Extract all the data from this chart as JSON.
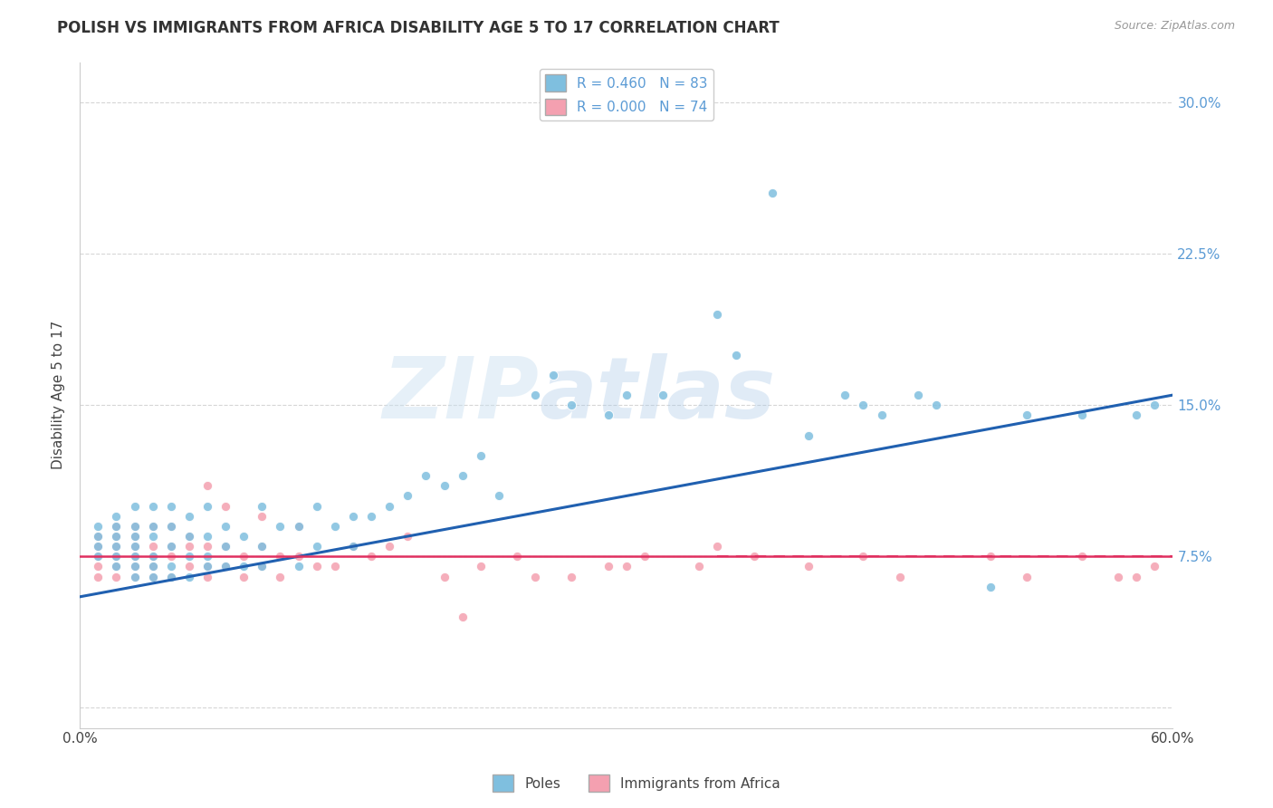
{
  "title": "POLISH VS IMMIGRANTS FROM AFRICA DISABILITY AGE 5 TO 17 CORRELATION CHART",
  "source": "Source: ZipAtlas.com",
  "ylabel": "Disability Age 5 to 17",
  "xlim": [
    0.0,
    0.6
  ],
  "ylim": [
    -0.01,
    0.32
  ],
  "poles_color": "#7fbfdf",
  "africa_color": "#f4a0b0",
  "trend_poles_color": "#2060b0",
  "trend_africa_color": "#e03060",
  "background_color": "#ffffff",
  "grid_color": "#cccccc",
  "watermark_zip": "ZIP",
  "watermark_atlas": "atlas",
  "poles_x": [
    0.01,
    0.01,
    0.01,
    0.01,
    0.02,
    0.02,
    0.02,
    0.02,
    0.02,
    0.02,
    0.03,
    0.03,
    0.03,
    0.03,
    0.03,
    0.03,
    0.03,
    0.04,
    0.04,
    0.04,
    0.04,
    0.04,
    0.04,
    0.05,
    0.05,
    0.05,
    0.05,
    0.05,
    0.06,
    0.06,
    0.06,
    0.06,
    0.07,
    0.07,
    0.07,
    0.07,
    0.08,
    0.08,
    0.08,
    0.09,
    0.09,
    0.1,
    0.1,
    0.1,
    0.11,
    0.12,
    0.12,
    0.13,
    0.13,
    0.14,
    0.15,
    0.15,
    0.16,
    0.17,
    0.18,
    0.19,
    0.2,
    0.21,
    0.22,
    0.23,
    0.25,
    0.26,
    0.27,
    0.29,
    0.3,
    0.32,
    0.35,
    0.36,
    0.38,
    0.4,
    0.42,
    0.43,
    0.44,
    0.46,
    0.47,
    0.5,
    0.52,
    0.55,
    0.58,
    0.59
  ],
  "poles_y": [
    0.075,
    0.08,
    0.085,
    0.09,
    0.07,
    0.075,
    0.08,
    0.085,
    0.09,
    0.095,
    0.065,
    0.07,
    0.075,
    0.08,
    0.085,
    0.09,
    0.1,
    0.065,
    0.07,
    0.075,
    0.085,
    0.09,
    0.1,
    0.065,
    0.07,
    0.08,
    0.09,
    0.1,
    0.065,
    0.075,
    0.085,
    0.095,
    0.07,
    0.075,
    0.085,
    0.1,
    0.07,
    0.08,
    0.09,
    0.07,
    0.085,
    0.07,
    0.08,
    0.1,
    0.09,
    0.07,
    0.09,
    0.08,
    0.1,
    0.09,
    0.08,
    0.095,
    0.095,
    0.1,
    0.105,
    0.115,
    0.11,
    0.115,
    0.125,
    0.105,
    0.155,
    0.165,
    0.15,
    0.145,
    0.155,
    0.155,
    0.195,
    0.175,
    0.255,
    0.135,
    0.155,
    0.15,
    0.145,
    0.155,
    0.15,
    0.06,
    0.145,
    0.145,
    0.145,
    0.15
  ],
  "africa_x": [
    0.01,
    0.01,
    0.01,
    0.01,
    0.01,
    0.02,
    0.02,
    0.02,
    0.02,
    0.02,
    0.02,
    0.03,
    0.03,
    0.03,
    0.03,
    0.03,
    0.03,
    0.04,
    0.04,
    0.04,
    0.04,
    0.04,
    0.05,
    0.05,
    0.05,
    0.05,
    0.06,
    0.06,
    0.06,
    0.07,
    0.07,
    0.07,
    0.07,
    0.08,
    0.08,
    0.08,
    0.09,
    0.09,
    0.1,
    0.1,
    0.1,
    0.11,
    0.11,
    0.12,
    0.12,
    0.13,
    0.14,
    0.15,
    0.16,
    0.17,
    0.18,
    0.2,
    0.21,
    0.22,
    0.24,
    0.25,
    0.27,
    0.29,
    0.3,
    0.31,
    0.34,
    0.35,
    0.37,
    0.4,
    0.43,
    0.45,
    0.5,
    0.52,
    0.55,
    0.57,
    0.58,
    0.59
  ],
  "africa_y": [
    0.065,
    0.07,
    0.075,
    0.08,
    0.085,
    0.065,
    0.07,
    0.075,
    0.08,
    0.085,
    0.09,
    0.065,
    0.07,
    0.075,
    0.08,
    0.085,
    0.09,
    0.065,
    0.07,
    0.075,
    0.08,
    0.09,
    0.065,
    0.075,
    0.08,
    0.09,
    0.07,
    0.08,
    0.085,
    0.065,
    0.07,
    0.08,
    0.11,
    0.07,
    0.08,
    0.1,
    0.065,
    0.075,
    0.07,
    0.08,
    0.095,
    0.065,
    0.075,
    0.075,
    0.09,
    0.07,
    0.07,
    0.08,
    0.075,
    0.08,
    0.085,
    0.065,
    0.045,
    0.07,
    0.075,
    0.065,
    0.065,
    0.07,
    0.07,
    0.075,
    0.07,
    0.08,
    0.075,
    0.07,
    0.075,
    0.065,
    0.075,
    0.065,
    0.075,
    0.065,
    0.065,
    0.07
  ],
  "trend_poles_x0": 0.0,
  "trend_poles_y0": 0.055,
  "trend_poles_x1": 0.6,
  "trend_poles_y1": 0.155,
  "trend_africa_x0": 0.0,
  "trend_africa_y0": 0.075,
  "trend_africa_x1": 0.6,
  "trend_africa_y1": 0.075
}
